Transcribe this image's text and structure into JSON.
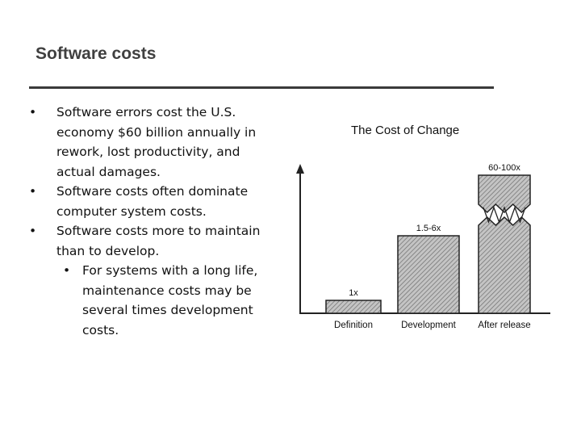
{
  "slide": {
    "title": "Software costs"
  },
  "bullets": [
    {
      "level": 1,
      "text": "Software errors cost the U.S. economy $60 billion annually in rework, lost productivity, and actual damages."
    },
    {
      "level": 1,
      "text": "Software costs often dominate computer system costs."
    },
    {
      "level": 1,
      "text": "Software costs more to maintain than to develop."
    },
    {
      "level": 2,
      "text": "For systems with a long life, maintenance costs may be several times development costs."
    }
  ],
  "bullet_symbol": "•",
  "chart_data": {
    "type": "bar",
    "title": "The Cost of Change",
    "categories": [
      "Definition",
      "Development",
      "After release"
    ],
    "data_labels": [
      "1x",
      "1.5-6x",
      "60-100x"
    ],
    "values": [
      1,
      6,
      100
    ],
    "axis_break_on": [
      "After release"
    ],
    "bar_fill": "hatched",
    "colors": {
      "bar_fill": "#bdbdbd",
      "bar_stroke": "#222222",
      "axis": "#222222"
    }
  }
}
